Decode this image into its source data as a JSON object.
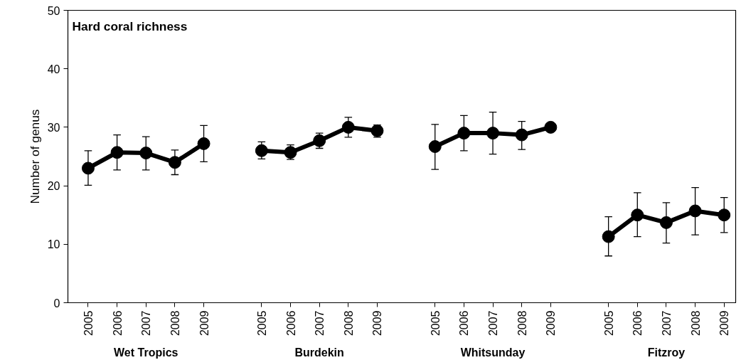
{
  "chart_data": {
    "type": "line",
    "title": "Hard coral richness",
    "ylabel": "Number of genus",
    "categories": [
      "2005",
      "2006",
      "2007",
      "2008",
      "2009",
      null,
      "2005",
      "2006",
      "2007",
      "2008",
      "2009",
      null,
      "2005",
      "2006",
      "2007",
      "2008",
      "2009",
      null,
      "2005",
      "2006",
      "2007",
      "2008",
      "2009"
    ],
    "ylim": [
      0,
      50
    ],
    "yticks": [
      0,
      10,
      20,
      30,
      40,
      50
    ],
    "grid": false,
    "annotations": [
      "Wet Tropics",
      "Burdekin",
      "Whitsunday",
      "Fitzroy"
    ],
    "marker": "circle",
    "line_style": "solid",
    "series": [
      {
        "color": "#000000",
        "values": [
          23.0,
          25.7,
          25.6,
          24.0,
          27.2,
          null,
          null,
          null,
          null,
          null,
          null,
          null,
          null,
          null,
          null,
          null,
          null,
          null,
          null,
          null,
          null,
          null,
          null
        ],
        "errors": [
          [
            20.1,
            26.0
          ],
          [
            22.7,
            28.7
          ],
          [
            22.7,
            28.4
          ],
          [
            21.9,
            26.1
          ],
          [
            24.1,
            30.3
          ],
          null,
          null,
          null,
          null,
          null,
          null,
          null,
          null,
          null,
          null,
          null,
          null,
          null,
          null,
          null,
          null,
          null,
          null
        ]
      },
      {
        "color": "#000000",
        "values": [
          null,
          null,
          null,
          null,
          null,
          null,
          26.0,
          25.7,
          27.7,
          30.0,
          29.4,
          null,
          null,
          null,
          null,
          null,
          null,
          null,
          null,
          null,
          null,
          null,
          null
        ],
        "errors": [
          null,
          null,
          null,
          null,
          null,
          null,
          [
            24.6,
            27.5
          ],
          [
            24.5,
            27.0
          ],
          [
            26.4,
            29.0
          ],
          [
            28.3,
            31.7
          ],
          [
            28.3,
            30.4
          ],
          null,
          null,
          null,
          null,
          null,
          null,
          null,
          null,
          null,
          null,
          null,
          null
        ]
      },
      {
        "color": "#000000",
        "values": [
          null,
          null,
          null,
          null,
          null,
          null,
          null,
          null,
          null,
          null,
          null,
          null,
          26.7,
          29.0,
          29.0,
          28.7,
          30.0,
          null,
          null,
          null,
          null,
          null,
          null
        ],
        "errors": [
          null,
          null,
          null,
          null,
          null,
          null,
          null,
          null,
          null,
          null,
          null,
          null,
          [
            22.8,
            30.5
          ],
          [
            26.0,
            32.0
          ],
          [
            25.4,
            32.6
          ],
          [
            26.2,
            31.0
          ],
          null,
          null,
          null,
          null,
          null,
          null,
          null
        ]
      },
      {
        "color": "#000000",
        "values": [
          null,
          null,
          null,
          null,
          null,
          null,
          null,
          null,
          null,
          null,
          null,
          null,
          null,
          null,
          null,
          null,
          null,
          null,
          11.3,
          15.0,
          13.7,
          15.7,
          15.0
        ],
        "errors": [
          null,
          null,
          null,
          null,
          null,
          null,
          null,
          null,
          null,
          null,
          null,
          null,
          null,
          null,
          null,
          null,
          null,
          null,
          [
            8.0,
            14.7
          ],
          [
            11.3,
            18.8
          ],
          [
            10.2,
            17.1
          ],
          [
            11.6,
            19.7
          ],
          [
            12.0,
            18.0
          ]
        ]
      }
    ]
  }
}
